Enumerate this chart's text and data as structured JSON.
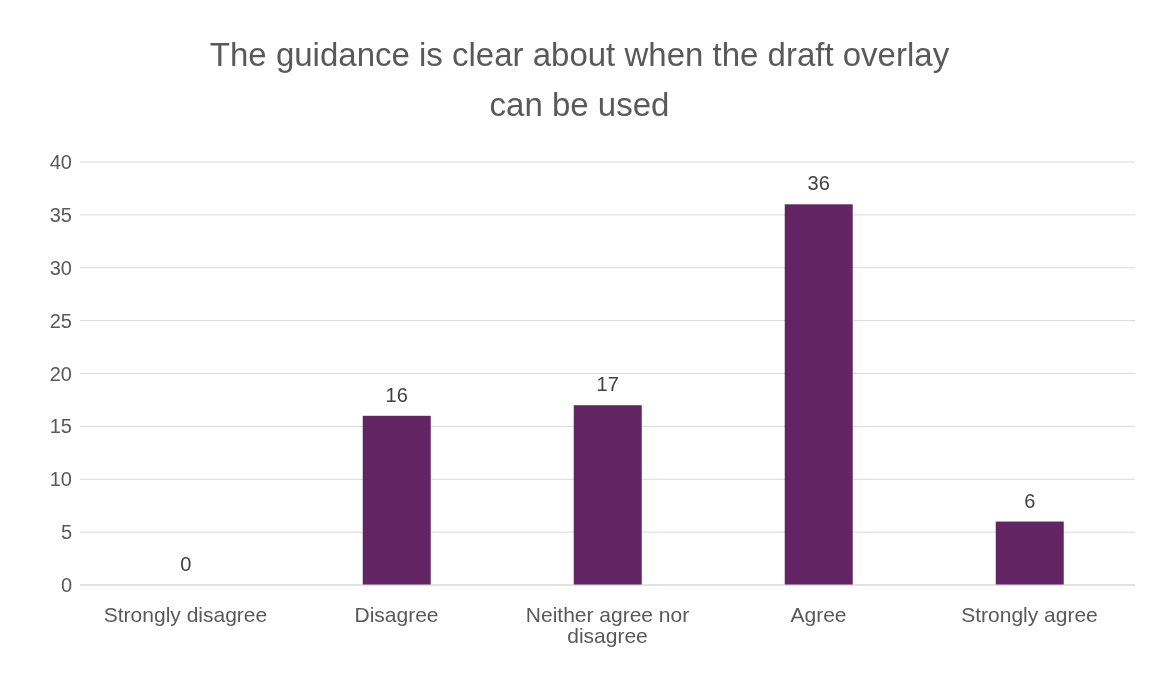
{
  "chart_data": {
    "type": "bar",
    "title": "The guidance is clear about when the draft overlay can be used",
    "categories": [
      "Strongly disagree",
      "Disagree",
      "Neither agree nor disagree",
      "Agree",
      "Strongly agree"
    ],
    "values": [
      0,
      16,
      17,
      36,
      6
    ],
    "color": "#632463",
    "ylim": [
      0,
      40
    ],
    "yticks": [
      0,
      5,
      10,
      15,
      20,
      25,
      30,
      35,
      40
    ],
    "grid": "y",
    "data_labels": true
  }
}
